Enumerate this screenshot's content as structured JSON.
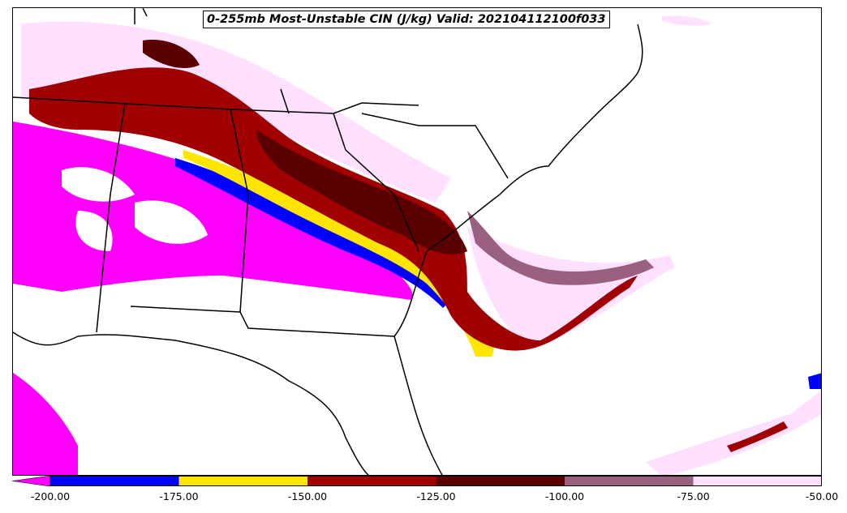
{
  "title": "0-255mb Most-Unstable CIN (J/kg) Valid: 202104112100f033",
  "colorbar": {
    "levels": [
      -200,
      -175,
      -150,
      -125,
      -100,
      -75,
      -50
    ],
    "labels": [
      "-200.00",
      "-175.00",
      "-150.00",
      "-125.00",
      "-100.00",
      "-75.00",
      "-50.00"
    ],
    "colors": [
      "#ff00ff",
      "#0000ff",
      "#ffe600",
      "#a00000",
      "#5a0000",
      "#9a6080",
      "#ffe0ff"
    ],
    "extend": "min"
  },
  "map": {
    "region": "Southeastern United States",
    "features": [
      "state-borders",
      "coastlines",
      "cin-contours"
    ]
  }
}
